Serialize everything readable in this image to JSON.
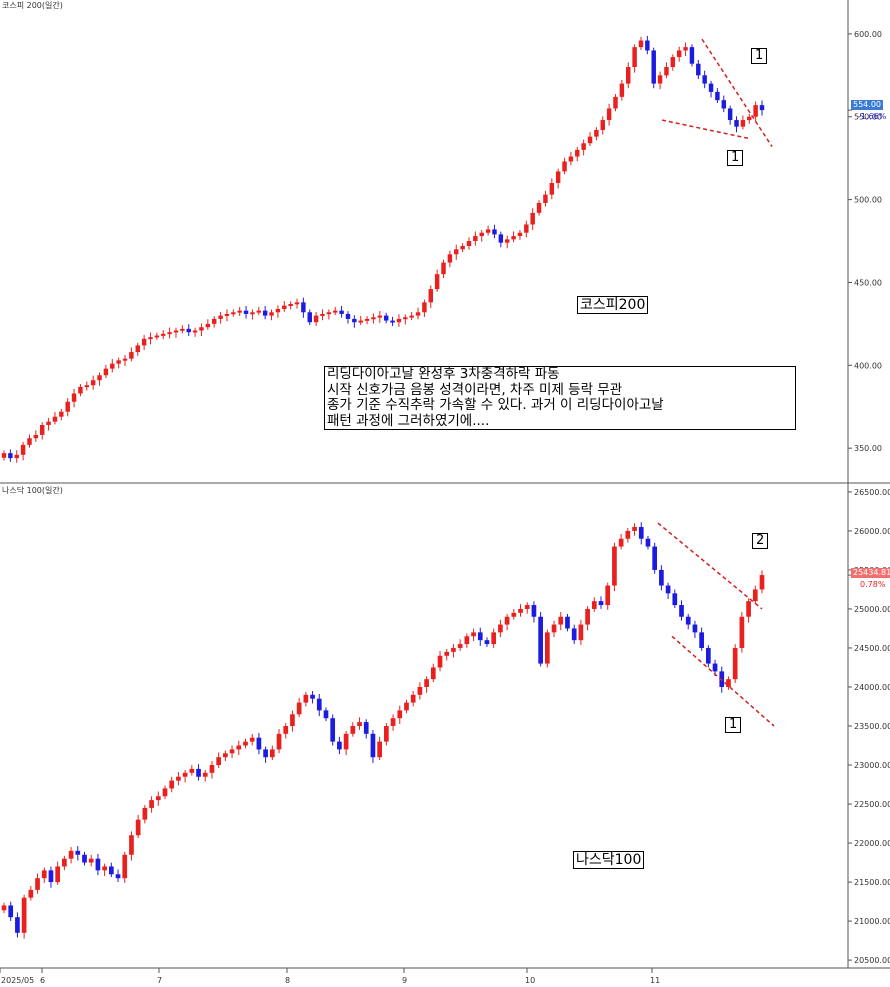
{
  "colors": {
    "up": "#e8211f",
    "down": "#1c1ce0",
    "grid": "#999999",
    "trend": "#d32020",
    "badge_down": "#3a7bd5",
    "badge_up": "#f07070"
  },
  "x_axis": {
    "ticks": [
      "2025/05",
      "6",
      "7",
      "8",
      "9",
      "10",
      "11"
    ]
  },
  "annotation_note": {
    "lines": [
      "리딩다이아고날 완성후 3차충격하락 파동",
      "시작 신호가금 음봉 성격이라면, 차주 미제 등락 무관",
      "종가 기준 수직추락 가속할 수 있다. 과거 이 리딩다이아고날",
      "패턴 과정에 그러하였기에...."
    ]
  },
  "chart_data": [
    {
      "type": "candlestick",
      "title": "코스피200",
      "header": "코스피 200(일간)",
      "yticks": [
        "600.00",
        "550.00",
        "500.00",
        "450.00",
        "400.00",
        "350.00"
      ],
      "ylim": [
        332,
        612
      ],
      "last_price": "554.00",
      "last_change": "-1.66%",
      "annotations": [
        "1",
        "1"
      ],
      "closes": [
        347,
        344,
        346,
        352,
        356,
        358,
        364,
        366,
        369,
        372,
        378,
        383,
        387,
        388,
        391,
        394,
        398,
        401,
        403,
        404,
        408,
        412,
        416,
        417,
        418,
        419,
        420,
        421,
        422,
        420,
        421,
        423,
        425,
        428,
        430,
        431,
        432,
        433,
        431,
        432,
        433,
        430,
        432,
        434,
        436,
        437,
        438,
        432,
        426,
        430,
        431,
        432,
        433,
        431,
        428,
        426,
        427,
        428,
        429,
        430,
        427,
        426,
        428,
        429,
        430,
        432,
        438,
        446,
        455,
        462,
        467,
        470,
        472,
        475,
        478,
        480,
        482,
        479,
        474,
        476,
        478,
        480,
        485,
        492,
        498,
        503,
        510,
        517,
        523,
        526,
        530,
        534,
        538,
        542,
        548,
        555,
        562,
        570,
        580,
        592,
        596,
        590,
        570,
        575,
        580,
        586,
        590,
        592,
        582,
        575,
        570,
        565,
        560,
        555,
        548,
        544,
        548,
        550,
        557,
        554
      ]
    },
    {
      "type": "candlestick",
      "title": "나스닥100",
      "header": "나스닥 100(일간)",
      "yticks": [
        "26500.00",
        "26000.00",
        "25500.00",
        "25000.00",
        "24500.00",
        "24000.00",
        "23500.00",
        "23000.00",
        "22500.00",
        "22000.00",
        "21500.00",
        "21000.00",
        "20500.00"
      ],
      "ylim": [
        20450,
        26550
      ],
      "last_price": "25434.81",
      "last_change": "0.78%",
      "annotations": [
        "2",
        "1"
      ],
      "closes": [
        21200,
        21050,
        20850,
        21300,
        21400,
        21550,
        21650,
        21500,
        21700,
        21800,
        21900,
        21850,
        21750,
        21800,
        21650,
        21700,
        21600,
        21550,
        21850,
        22100,
        22300,
        22450,
        22550,
        22600,
        22700,
        22800,
        22850,
        22900,
        22950,
        22850,
        22900,
        23000,
        23100,
        23150,
        23200,
        23250,
        23300,
        23350,
        23200,
        23100,
        23200,
        23400,
        23500,
        23650,
        23800,
        23900,
        23850,
        23700,
        23600,
        23300,
        23200,
        23400,
        23500,
        23550,
        23400,
        23100,
        23300,
        23500,
        23600,
        23700,
        23800,
        23900,
        24000,
        24100,
        24250,
        24400,
        24450,
        24500,
        24550,
        24650,
        24700,
        24600,
        24550,
        24700,
        24800,
        24900,
        24950,
        25000,
        25050,
        24900,
        24300,
        24700,
        24800,
        24900,
        24750,
        24600,
        24800,
        25000,
        25100,
        25050,
        25300,
        25800,
        25900,
        26000,
        26050,
        25900,
        25800,
        25500,
        25300,
        25200,
        25050,
        24900,
        24800,
        24700,
        24500,
        24300,
        24200,
        24000,
        24100,
        24500,
        24900,
        25100,
        25250,
        25434
      ]
    }
  ]
}
